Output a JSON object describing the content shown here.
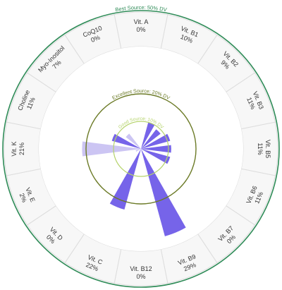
{
  "chart_data": {
    "type": "radial-bar",
    "ring_labels": {
      "best": "Best Source: 50% DV",
      "excellent": "Excellent Source: 20% DV",
      "good": "Good Source: 10% DV"
    },
    "nutrients": [
      {
        "name": "Vit. A",
        "pct_text": "0%",
        "value": 0
      },
      {
        "name": "Vit. B1",
        "pct_text": "10%",
        "value": 10
      },
      {
        "name": "Vit. B2",
        "pct_text": "9%",
        "value": 9
      },
      {
        "name": "Vit. B3",
        "pct_text": "11%",
        "value": 11
      },
      {
        "name": "Vit. B5",
        "pct_text": "11%",
        "value": 11
      },
      {
        "name": "Vit. B6",
        "pct_text": "11%",
        "value": 11
      },
      {
        "name": "Vit. B7",
        "pct_text": "0%",
        "value": 0
      },
      {
        "name": "Vit. B9",
        "pct_text": "29%",
        "value": 29
      },
      {
        "name": "Vit. B12",
        "pct_text": "0%",
        "value": 0
      },
      {
        "name": "Vit. C",
        "pct_text": "22%",
        "value": 22
      },
      {
        "name": "Vit. D",
        "pct_text": "0%",
        "value": 0
      },
      {
        "name": "Vit. E",
        "pct_text": "2%",
        "value": 2
      },
      {
        "name": "Vit. K",
        "pct_text": "21%",
        "value": 21
      },
      {
        "name": "Choline",
        "pct_text": "11%",
        "value": 11
      },
      {
        "name": "Myo-Inositol",
        "pct_text": "7%",
        "value": 7
      },
      {
        "name": "CoQ10",
        "pct_text": "0%",
        "value": 0
      }
    ],
    "colors": {
      "bar_dark": "#6f5ce8",
      "bar_light": "#c9c2f2",
      "best_ring": "#2e8b57",
      "excellent_ring": "#6b7a26",
      "good_ring": "#b5d36b",
      "cell_fill": "#f7f7f7",
      "cell_border": "#dddddd",
      "label_text": "#333333"
    }
  }
}
